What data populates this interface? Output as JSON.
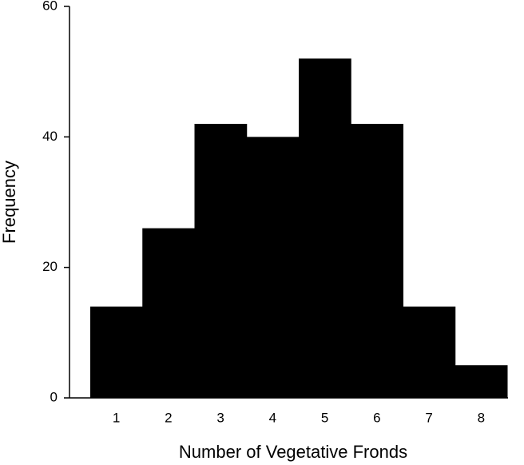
{
  "chart_data": {
    "type": "bar",
    "x_label": "Number of Vegetative Fronds",
    "y_label": "Frequency",
    "categories": [
      "1",
      "2",
      "3",
      "4",
      "5",
      "6",
      "7",
      "8"
    ],
    "values": [
      14,
      26,
      42,
      40,
      52,
      42,
      14,
      5
    ],
    "color": "#000000",
    "ylim": [
      0,
      60
    ],
    "yticks": [
      0,
      20,
      40,
      60
    ],
    "grid": false
  }
}
